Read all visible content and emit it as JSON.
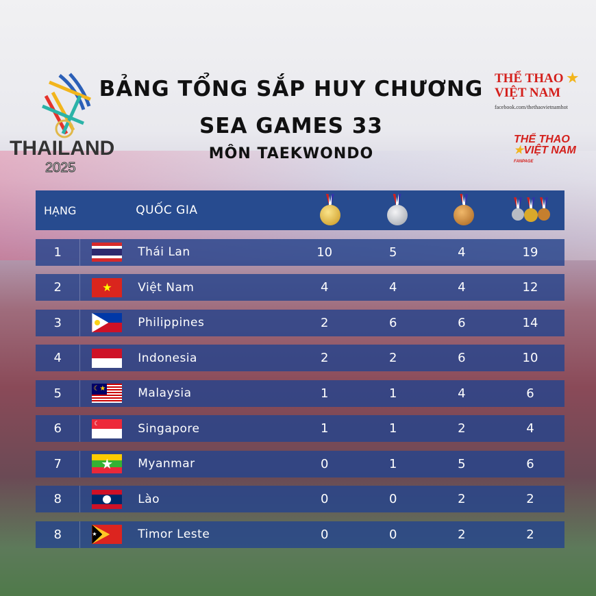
{
  "header": {
    "line1": "BẢNG TỔNG SẮP HUY CHƯƠNG",
    "line2": "SEA GAMES 33",
    "line3": "MÔN TAEKWONDO"
  },
  "logos": {
    "left_text": "THAILAND",
    "left_year": "2025",
    "right1_line1": "THỂ THAO",
    "right1_line2": "VIỆT NAM",
    "right1_url": "facebook.com/thethaovietnamhot",
    "right2_line1": "THỂ THAO",
    "right2_line2": "VIỆT NAM",
    "right2_tag": "FANPAGE"
  },
  "table": {
    "columns": {
      "rank": "HẠNG",
      "country": "QUỐC GIA",
      "gold": "gold-medal-icon",
      "silver": "silver-medal-icon",
      "bronze": "bronze-medal-icon",
      "total": "total-medals-icon"
    },
    "rows": [
      {
        "rank": "1",
        "country": "Thái Lan",
        "flag": "thailand",
        "gold": "10",
        "silver": "5",
        "bronze": "4",
        "total": "19"
      },
      {
        "rank": "2",
        "country": "Việt Nam",
        "flag": "vietnam",
        "gold": "4",
        "silver": "4",
        "bronze": "4",
        "total": "12"
      },
      {
        "rank": "3",
        "country": "Philippines",
        "flag": "philippines",
        "gold": "2",
        "silver": "6",
        "bronze": "6",
        "total": "14"
      },
      {
        "rank": "4",
        "country": "Indonesia",
        "flag": "indonesia",
        "gold": "2",
        "silver": "2",
        "bronze": "6",
        "total": "10"
      },
      {
        "rank": "5",
        "country": "Malaysia",
        "flag": "malaysia",
        "gold": "1",
        "silver": "1",
        "bronze": "4",
        "total": "6"
      },
      {
        "rank": "6",
        "country": "Singapore",
        "flag": "singapore",
        "gold": "1",
        "silver": "1",
        "bronze": "2",
        "total": "4"
      },
      {
        "rank": "7",
        "country": "Myanmar",
        "flag": "myanmar",
        "gold": "0",
        "silver": "1",
        "bronze": "5",
        "total": "6"
      },
      {
        "rank": "8",
        "country": "Lào",
        "flag": "laos",
        "gold": "0",
        "silver": "0",
        "bronze": "2",
        "total": "2"
      },
      {
        "rank": "8",
        "country": "Timor Leste",
        "flag": "timor-leste",
        "gold": "0",
        "silver": "0",
        "bronze": "2",
        "total": "2"
      }
    ]
  },
  "colors": {
    "header_bg": "#274b8f",
    "row_bg": "#26448c",
    "gold": "#d9a92a",
    "silver": "#b8bcc4",
    "bronze": "#c57f2e"
  }
}
